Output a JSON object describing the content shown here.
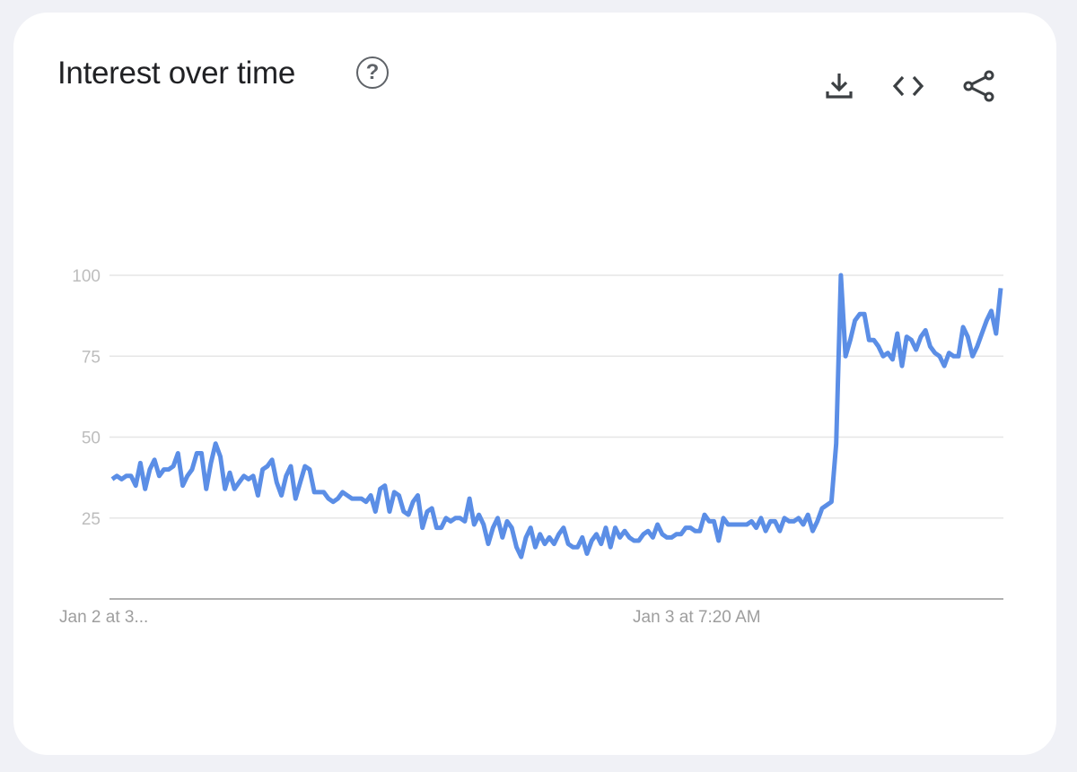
{
  "card": {
    "title": "Interest over time",
    "help_icon": "help-circle-icon",
    "help_glyph": "?"
  },
  "toolbar": [
    {
      "name": "download-icon",
      "label": "Download"
    },
    {
      "name": "embed-icon",
      "label": "Embed"
    },
    {
      "name": "share-icon",
      "label": "Share"
    }
  ],
  "chart_data": {
    "type": "line",
    "title": "Interest over time",
    "ylim": [
      0,
      100
    ],
    "yticks": [
      25,
      50,
      75,
      100
    ],
    "xtick_labels": [
      "Jan 2 at 3...",
      "Jan 3 at 7:20 AM"
    ],
    "grid": true,
    "line_color": "#5b8ee6",
    "values": [
      37,
      38,
      37,
      38,
      38,
      35,
      42,
      34,
      40,
      43,
      38,
      40,
      40,
      41,
      45,
      35,
      38,
      40,
      45,
      45,
      34,
      42,
      48,
      44,
      34,
      39,
      34,
      36,
      38,
      37,
      38,
      32,
      40,
      41,
      43,
      36,
      32,
      38,
      41,
      31,
      36,
      41,
      40,
      33,
      33,
      33,
      31,
      30,
      31,
      33,
      32,
      31,
      31,
      31,
      30,
      32,
      27,
      34,
      35,
      27,
      33,
      32,
      27,
      26,
      30,
      32,
      22,
      27,
      28,
      22,
      22,
      25,
      24,
      25,
      25,
      24,
      31,
      23,
      26,
      23,
      17,
      22,
      25,
      19,
      24,
      22,
      16,
      13,
      19,
      22,
      16,
      20,
      17,
      19,
      17,
      20,
      22,
      17,
      16,
      16,
      19,
      14,
      18,
      20,
      17,
      22,
      16,
      22,
      19,
      21,
      19,
      18,
      18,
      20,
      21,
      19,
      23,
      20,
      19,
      19,
      20,
      20,
      22,
      22,
      21,
      21,
      26,
      24,
      24,
      18,
      25,
      23,
      23,
      23,
      23,
      23,
      24,
      22,
      25,
      21,
      24,
      24,
      21,
      25,
      24,
      24,
      25,
      23,
      26,
      21,
      24,
      28,
      29,
      30,
      48,
      100,
      75,
      80,
      86,
      88,
      88,
      80,
      80,
      78,
      75,
      76,
      74,
      82,
      72,
      81,
      80,
      77,
      81,
      83,
      78,
      76,
      75,
      72,
      76,
      75,
      75,
      84,
      81,
      75,
      78,
      82,
      86,
      89,
      82,
      96
    ]
  }
}
